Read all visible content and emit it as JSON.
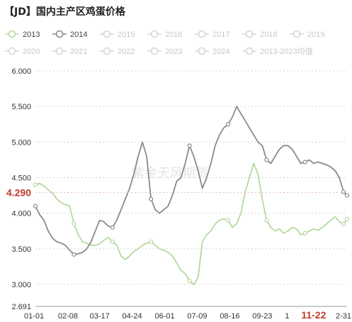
{
  "title": "【JD】国内主产区鸡蛋价格",
  "watermark": "紫金天风期货",
  "chart_data": {
    "type": "line",
    "title": "【JD】国内主产区鸡蛋价格",
    "ylim": [
      2.691,
      6.0
    ],
    "y_ticks": [
      "6.000",
      "5.500",
      "5.000",
      "4.500",
      "4.000",
      "3.500",
      "3.000",
      "2.691"
    ],
    "y_tick_values": [
      6.0,
      5.5,
      5.0,
      4.5,
      4.0,
      3.5,
      3.0,
      2.691
    ],
    "x_ticks": [
      "01-01",
      "02-08",
      "03-17",
      "04-24",
      "06-01",
      "07-09",
      "08-16",
      "09-23",
      "1",
      "11-22",
      "2-31"
    ],
    "x_tick_days": [
      0,
      38,
      75,
      113,
      151,
      189,
      227,
      265,
      294,
      325,
      364
    ],
    "highlight_label": "4.290",
    "highlight_value": 4.29,
    "highlight_x_label": "11-22",
    "legend_rows": [
      [
        "2013",
        "2014",
        "2015",
        "2016",
        "2017",
        "2018",
        "2019"
      ],
      [
        "2020",
        "2021",
        "2022",
        "2023",
        "2024",
        "2013-2023均值"
      ]
    ],
    "legend_colors": {
      "2013": "#b5d9a0",
      "2014": "#8a8a8a",
      "2015": "#d6d6d6",
      "2016": "#d6d6d6",
      "2017": "#d6d6d6",
      "2018": "#d6d6d6",
      "2019": "#d6d6d6",
      "2020": "#d6d6d6",
      "2021": "#d6d6d6",
      "2022": "#d6d6d6",
      "2023": "#d6d6d6",
      "2024": "#d6d6d6",
      "2013-2023均值": "#d6d6d6"
    },
    "active_series": [
      "2013",
      "2014"
    ],
    "grid": true,
    "series": [
      {
        "name": "2013",
        "color": "#b5d9a0",
        "x": [
          0,
          5,
          10,
          15,
          20,
          25,
          30,
          35,
          40,
          45,
          50,
          55,
          60,
          65,
          70,
          75,
          80,
          85,
          90,
          95,
          100,
          105,
          110,
          115,
          120,
          125,
          130,
          135,
          140,
          145,
          150,
          155,
          160,
          165,
          170,
          175,
          180,
          185,
          190,
          195,
          200,
          205,
          210,
          215,
          220,
          225,
          230,
          235,
          240,
          245,
          250,
          255,
          260,
          265,
          270,
          275,
          280,
          285,
          290,
          295,
          300,
          305,
          310,
          315,
          320,
          325,
          330,
          335,
          340,
          345,
          350,
          355,
          360,
          364
        ],
        "y": [
          4.4,
          4.42,
          4.38,
          4.33,
          4.28,
          4.2,
          4.15,
          4.12,
          4.1,
          3.85,
          3.7,
          3.6,
          3.58,
          3.55,
          3.55,
          3.57,
          3.62,
          3.66,
          3.6,
          3.55,
          3.4,
          3.35,
          3.4,
          3.46,
          3.5,
          3.55,
          3.58,
          3.6,
          3.55,
          3.5,
          3.48,
          3.45,
          3.4,
          3.3,
          3.2,
          3.15,
          3.05,
          3.0,
          3.1,
          3.6,
          3.7,
          3.75,
          3.85,
          3.9,
          3.92,
          3.9,
          3.8,
          3.85,
          4.0,
          4.3,
          4.5,
          4.7,
          4.55,
          4.2,
          3.9,
          3.8,
          3.75,
          3.78,
          3.72,
          3.75,
          3.8,
          3.78,
          3.7,
          3.72,
          3.75,
          3.78,
          3.76,
          3.8,
          3.85,
          3.9,
          3.95,
          3.88,
          3.85,
          3.92
        ]
      },
      {
        "name": "2014",
        "color": "#8a8a8a",
        "x": [
          0,
          5,
          10,
          15,
          20,
          25,
          30,
          35,
          40,
          45,
          50,
          55,
          60,
          65,
          70,
          75,
          80,
          85,
          90,
          95,
          100,
          105,
          110,
          115,
          120,
          125,
          130,
          135,
          140,
          145,
          150,
          155,
          160,
          165,
          170,
          175,
          180,
          185,
          190,
          195,
          200,
          205,
          210,
          215,
          220,
          225,
          230,
          235,
          240,
          245,
          250,
          255,
          260,
          265,
          270,
          275,
          280,
          285,
          290,
          295,
          300,
          305,
          310,
          315,
          320,
          325,
          330,
          335,
          340,
          345,
          350,
          355,
          360,
          364
        ],
        "y": [
          4.1,
          3.98,
          3.9,
          3.75,
          3.65,
          3.6,
          3.58,
          3.55,
          3.48,
          3.42,
          3.43,
          3.45,
          3.5,
          3.6,
          3.75,
          3.9,
          3.88,
          3.82,
          3.8,
          3.9,
          4.05,
          4.2,
          4.35,
          4.55,
          4.8,
          5.0,
          4.8,
          4.2,
          4.05,
          4.0,
          4.05,
          4.1,
          4.25,
          4.45,
          4.5,
          4.7,
          4.95,
          4.8,
          4.6,
          4.35,
          4.5,
          4.7,
          4.95,
          5.1,
          5.2,
          5.25,
          5.35,
          5.5,
          5.4,
          5.3,
          5.2,
          5.1,
          5.0,
          4.95,
          4.75,
          4.7,
          4.8,
          4.9,
          4.95,
          4.95,
          4.9,
          4.8,
          4.7,
          4.72,
          4.75,
          4.7,
          4.72,
          4.7,
          4.68,
          4.65,
          4.6,
          4.5,
          4.3,
          4.25
        ]
      }
    ]
  }
}
